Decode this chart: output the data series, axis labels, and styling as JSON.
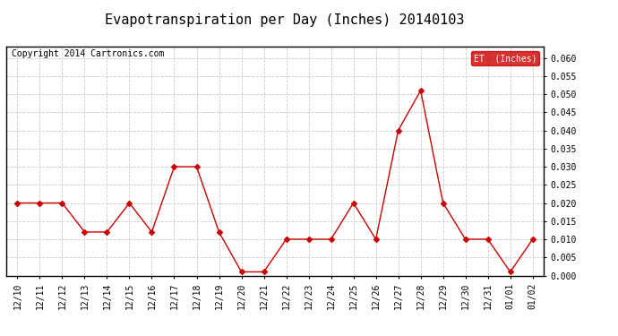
{
  "title": "Evapotranspiration per Day (Inches) 20140103",
  "copyright": "Copyright 2014 Cartronics.com",
  "legend_label": "ET  (Inches)",
  "dates": [
    "12/10",
    "12/11",
    "12/12",
    "12/13",
    "12/14",
    "12/15",
    "12/16",
    "12/17",
    "12/18",
    "12/19",
    "12/20",
    "12/21",
    "12/22",
    "12/23",
    "12/24",
    "12/25",
    "12/26",
    "12/27",
    "12/28",
    "12/29",
    "12/30",
    "12/31",
    "01/01",
    "01/02"
  ],
  "values": [
    0.02,
    0.02,
    0.02,
    0.012,
    0.012,
    0.02,
    0.012,
    0.03,
    0.03,
    0.012,
    0.001,
    0.001,
    0.01,
    0.01,
    0.01,
    0.02,
    0.01,
    0.04,
    0.051,
    0.02,
    0.01,
    0.01,
    0.001,
    0.01
  ],
  "line_color": "#cc0000",
  "marker": "D",
  "marker_size": 3,
  "ylim": [
    0.0,
    0.063
  ],
  "yticks": [
    0.0,
    0.005,
    0.01,
    0.015,
    0.02,
    0.025,
    0.03,
    0.035,
    0.04,
    0.045,
    0.05,
    0.055,
    0.06
  ],
  "bg_color": "#ffffff",
  "grid_color": "#cccccc",
  "title_fontsize": 11,
  "copyright_fontsize": 7,
  "tick_fontsize": 7,
  "legend_bg": "#cc0000",
  "legend_text_color": "#ffffff",
  "border_color": "#000000"
}
